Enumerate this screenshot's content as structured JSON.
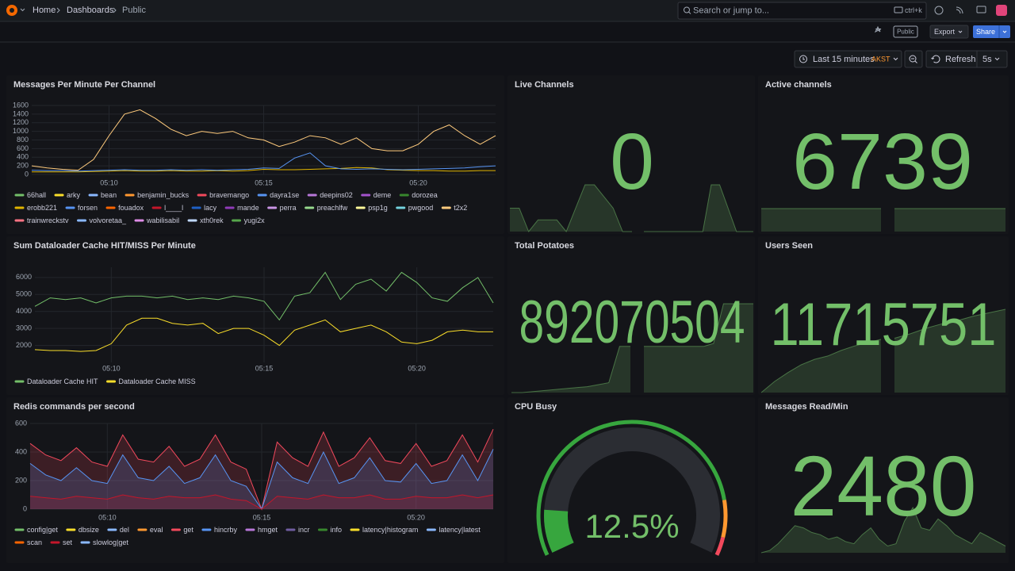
{
  "header": {
    "breadcrumbs": [
      "Home",
      "Dashboards",
      "Public"
    ],
    "search": "Search or jump to...",
    "shortcut": "ctrl+k"
  },
  "toolbar": {
    "public": "Public",
    "export": "Export",
    "share": "Share"
  },
  "time_picker": {
    "range": "Last 15 minutes",
    "timezone": "AKST",
    "refresh": "Refresh",
    "interval": "5s"
  },
  "panels": [
    {
      "type": "timeseries",
      "title": "Messages Per Minute Per Channel",
      "ylim": [
        0,
        1600
      ],
      "yticks": [
        0,
        200,
        400,
        600,
        800,
        1000,
        1200,
        1400,
        1600
      ],
      "xlim": [
        0,
        30
      ],
      "xticks": [
        {
          "value": 5,
          "label": "05:10"
        },
        {
          "value": 15,
          "label": "05:15"
        },
        {
          "value": 25,
          "label": "05:20"
        }
      ],
      "grid": true,
      "fill": false,
      "series": [
        {
          "name": "66hall",
          "color": "#73bf69"
        },
        {
          "name": "arky",
          "color": "#fade2a"
        },
        {
          "name": "bean",
          "color": "#8ab8ff"
        },
        {
          "name": "benjamin_bucks",
          "color": "#ff9830"
        },
        {
          "name": "bravemango",
          "color": "#f2495c"
        },
        {
          "name": "dayra1se",
          "color": "#5794f2"
        },
        {
          "name": "deepins02",
          "color": "#b877d9"
        },
        {
          "name": "deme",
          "color": "#a352cc"
        },
        {
          "name": "dorozea",
          "color": "#37872d"
        },
        {
          "name": "erobb221",
          "color": "#e0b400",
          "values": [
            60,
            60,
            60,
            60,
            70,
            80,
            90,
            80,
            80,
            90,
            80,
            80,
            90,
            80,
            90,
            120,
            110,
            110,
            120,
            130,
            140,
            160,
            150,
            110,
            100,
            90,
            90,
            80,
            80,
            90,
            90
          ]
        },
        {
          "name": "forsen",
          "color": "#5794f2",
          "values": [
            100,
            90,
            90,
            80,
            90,
            100,
            110,
            100,
            100,
            110,
            100,
            110,
            100,
            110,
            120,
            150,
            140,
            380,
            500,
            200,
            130,
            120,
            130,
            120,
            110,
            120,
            130,
            140,
            150,
            180,
            200
          ]
        },
        {
          "name": "fouadox",
          "color": "#fa6400"
        },
        {
          "name": "l____l",
          "color": "#c4162a"
        },
        {
          "name": "lacy",
          "color": "#1f60c4"
        },
        {
          "name": "mande",
          "color": "#8f3bb8"
        },
        {
          "name": "perra",
          "color": "#ca95e5"
        },
        {
          "name": "preachlfw",
          "color": "#96d98d"
        },
        {
          "name": "psp1g",
          "color": "#fff899"
        },
        {
          "name": "pwgood",
          "color": "#73d2de"
        },
        {
          "name": "t2x2",
          "color": "#ffcb7d",
          "values": [
            200,
            150,
            120,
            100,
            350,
            900,
            1400,
            1500,
            1300,
            1050,
            900,
            1000,
            950,
            1000,
            850,
            800,
            650,
            750,
            900,
            850,
            700,
            850,
            600,
            550,
            550,
            700,
            1000,
            1150,
            900,
            700,
            900
          ]
        },
        {
          "name": "trainwreckstv",
          "color": "#ff7383"
        },
        {
          "name": "volvoretaa_",
          "color": "#8ab8ff"
        },
        {
          "name": "wabilisabil",
          "color": "#de8ce6"
        },
        {
          "name": "xth0rek",
          "color": "#c0d8ff"
        },
        {
          "name": "yugi2x",
          "color": "#56a64b"
        }
      ]
    },
    {
      "type": "stat",
      "title": "Live Channels",
      "value": 0,
      "color": "#73bf69",
      "sparklines": [
        [
          2,
          2,
          0,
          1,
          1,
          1,
          0,
          2,
          4,
          4,
          3,
          2,
          0,
          0
        ],
        [
          0,
          0,
          0,
          0,
          0,
          0,
          0,
          0,
          4,
          4,
          2,
          0,
          0,
          0
        ]
      ]
    },
    {
      "type": "stat",
      "title": "Active channels",
      "value": 6739,
      "color": "#73bf69",
      "sparklines": [
        [
          6739,
          6739,
          6739,
          6739,
          6739,
          6739
        ],
        [
          6739,
          6739,
          6739,
          6739,
          6739,
          6739
        ]
      ]
    },
    {
      "type": "timeseries",
      "title": "Sum Dataloader Cache HIT/MISS Per Minute",
      "ylim": [
        1000,
        6600
      ],
      "yticks": [
        2000,
        3000,
        4000,
        5000,
        6000
      ],
      "xlim": [
        0,
        30
      ],
      "xticks": [
        {
          "value": 5,
          "label": "05:10"
        },
        {
          "value": 15,
          "label": "05:15"
        },
        {
          "value": 25,
          "label": "05:20"
        }
      ],
      "grid": true,
      "fill": false,
      "series": [
        {
          "name": "Dataloader Cache HIT",
          "color": "#73bf69",
          "values": [
            4300,
            4800,
            4700,
            4800,
            4500,
            4800,
            4900,
            4900,
            4800,
            4900,
            4700,
            4800,
            4700,
            4900,
            4800,
            4600,
            3500,
            4900,
            5100,
            6300,
            4700,
            5600,
            5900,
            5200,
            6300,
            5700,
            4800,
            4600,
            5400,
            6000,
            4500
          ]
        },
        {
          "name": "Dataloader Cache MISS",
          "color": "#fade2a",
          "values": [
            1750,
            1700,
            1700,
            1650,
            1700,
            2100,
            3200,
            3600,
            3600,
            3300,
            3200,
            3300,
            2700,
            3000,
            3000,
            2600,
            2000,
            2900,
            3200,
            3500,
            2800,
            3000,
            3200,
            2800,
            2200,
            2100,
            2300,
            2800,
            2900,
            2800,
            2800
          ]
        }
      ]
    },
    {
      "type": "stat",
      "title": "Total Potatoes",
      "value": 892070504,
      "color": "#73bf69",
      "sparklines": [
        [
          892069600,
          892069600,
          892069610,
          892069620,
          892069630,
          892069640,
          892069650,
          892069660,
          892069680,
          892069700,
          892070070,
          892070070
        ],
        [
          892070070,
          892070070,
          892070070,
          892070070,
          892070070,
          892070070,
          892070070,
          892070100,
          892070504,
          892070504,
          892070504,
          892070504
        ]
      ]
    },
    {
      "type": "stat",
      "title": "Users Seen",
      "value": 11715751,
      "color": "#73bf69",
      "sparklines": [
        [
          11715000,
          11715100,
          11715180,
          11715250,
          11715300,
          11715330,
          11715380,
          11715420,
          11715450,
          11715480
        ],
        [
          11715490,
          11715530,
          11715580,
          11715620,
          11715650,
          11715690,
          11715720,
          11715751
        ]
      ]
    },
    {
      "type": "timeseries",
      "title": "Redis commands per second",
      "ylim": [
        0,
        600
      ],
      "yticks": [
        0,
        200,
        400,
        600
      ],
      "xlim": [
        0,
        30
      ],
      "xticks": [
        {
          "value": 5,
          "label": "05:10"
        },
        {
          "value": 15,
          "label": "05:15"
        },
        {
          "value": 25,
          "label": "05:20"
        }
      ],
      "grid": true,
      "fill": true,
      "series": [
        {
          "name": "config|get",
          "color": "#73bf69"
        },
        {
          "name": "dbsize",
          "color": "#fade2a"
        },
        {
          "name": "del",
          "color": "#8ab8ff"
        },
        {
          "name": "eval",
          "color": "#ff9830"
        },
        {
          "name": "get",
          "color": "#f2495c",
          "values": [
            460,
            380,
            340,
            430,
            330,
            300,
            520,
            350,
            330,
            440,
            300,
            350,
            520,
            330,
            280,
            0,
            470,
            360,
            300,
            540,
            300,
            360,
            500,
            340,
            320,
            460,
            300,
            340,
            520,
            330,
            560
          ]
        },
        {
          "name": "hincrby",
          "color": "#5794f2",
          "values": [
            320,
            240,
            200,
            290,
            200,
            180,
            380,
            220,
            200,
            300,
            180,
            220,
            380,
            200,
            160,
            0,
            330,
            220,
            180,
            400,
            180,
            220,
            360,
            200,
            190,
            320,
            180,
            200,
            380,
            200,
            420
          ]
        },
        {
          "name": "hmget",
          "color": "#b877d9"
        },
        {
          "name": "incr",
          "color": "#705da0"
        },
        {
          "name": "info",
          "color": "#37872d"
        },
        {
          "name": "latency|histogram",
          "color": "#fade2a"
        },
        {
          "name": "latency|latest",
          "color": "#8ab8ff"
        },
        {
          "name": "scan",
          "color": "#fa6400"
        },
        {
          "name": "set",
          "color": "#c4162a",
          "values": [
            90,
            80,
            70,
            90,
            80,
            70,
            100,
            80,
            70,
            90,
            80,
            80,
            100,
            70,
            60,
            0,
            90,
            80,
            70,
            100,
            80,
            80,
            100,
            70,
            70,
            90,
            80,
            80,
            100,
            80,
            100
          ]
        },
        {
          "name": "slowlog|get",
          "color": "#8ab8ff"
        }
      ]
    },
    {
      "type": "gauge",
      "title": "CPU Busy",
      "value": 12.5,
      "value_label": "12.5%",
      "range": [
        0,
        100
      ],
      "color": "#37a63e",
      "text_color": "#73bf69",
      "thresholds": [
        {
          "value": 85,
          "color": "#ff9830"
        },
        {
          "value": 95,
          "color": "#f2495c"
        }
      ]
    },
    {
      "type": "stat",
      "title": "Messages Read/Min",
      "value": 2480,
      "color": "#73bf69",
      "sparklines": [
        [
          1900,
          1950,
          2100,
          2300,
          2500,
          2450,
          2350,
          2300,
          2200,
          2250,
          2150,
          2100,
          2300,
          2450,
          2200,
          2050,
          2100,
          2600,
          2900,
          2450,
          2400,
          2650,
          2500,
          2300,
          2200,
          2100,
          2350,
          2250,
          2150,
          2050
        ]
      ]
    }
  ]
}
